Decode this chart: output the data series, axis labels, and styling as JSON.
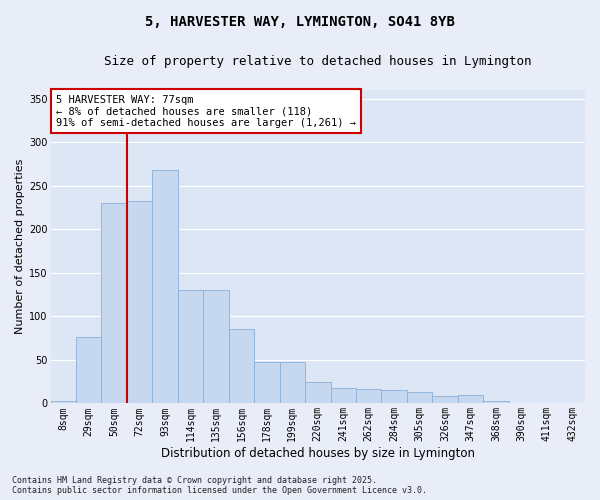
{
  "title_line1": "5, HARVESTER WAY, LYMINGTON, SO41 8YB",
  "title_line2": "Size of property relative to detached houses in Lymington",
  "xlabel": "Distribution of detached houses by size in Lymington",
  "ylabel": "Number of detached properties",
  "categories": [
    "8sqm",
    "29sqm",
    "50sqm",
    "72sqm",
    "93sqm",
    "114sqm",
    "135sqm",
    "156sqm",
    "178sqm",
    "199sqm",
    "220sqm",
    "241sqm",
    "262sqm",
    "284sqm",
    "305sqm",
    "326sqm",
    "347sqm",
    "368sqm",
    "390sqm",
    "411sqm",
    "432sqm"
  ],
  "values": [
    3,
    76,
    230,
    233,
    268,
    130,
    130,
    85,
    48,
    47,
    25,
    18,
    17,
    15,
    13,
    9,
    10,
    3,
    1,
    1,
    1
  ],
  "bar_color": "#c5d8f0",
  "bar_edge_color": "#8ab0d8",
  "vline_index": 2.5,
  "vline_color": "#cc0000",
  "annotation_text": "5 HARVESTER WAY: 77sqm\n← 8% of detached houses are smaller (118)\n91% of semi-detached houses are larger (1,261) →",
  "annotation_box_facecolor": "#ffffff",
  "annotation_box_edgecolor": "#cc0000",
  "ylim": [
    0,
    360
  ],
  "yticks": [
    0,
    50,
    100,
    150,
    200,
    250,
    300,
    350
  ],
  "fig_facecolor": "#e8edf8",
  "ax_facecolor": "#dce6f5",
  "grid_color": "#ffffff",
  "footer_text": "Contains HM Land Registry data © Crown copyright and database right 2025.\nContains public sector information licensed under the Open Government Licence v3.0.",
  "title_fontsize": 10,
  "subtitle_fontsize": 9,
  "tick_fontsize": 7,
  "ylabel_fontsize": 8,
  "xlabel_fontsize": 8.5,
  "annotation_fontsize": 7.5
}
